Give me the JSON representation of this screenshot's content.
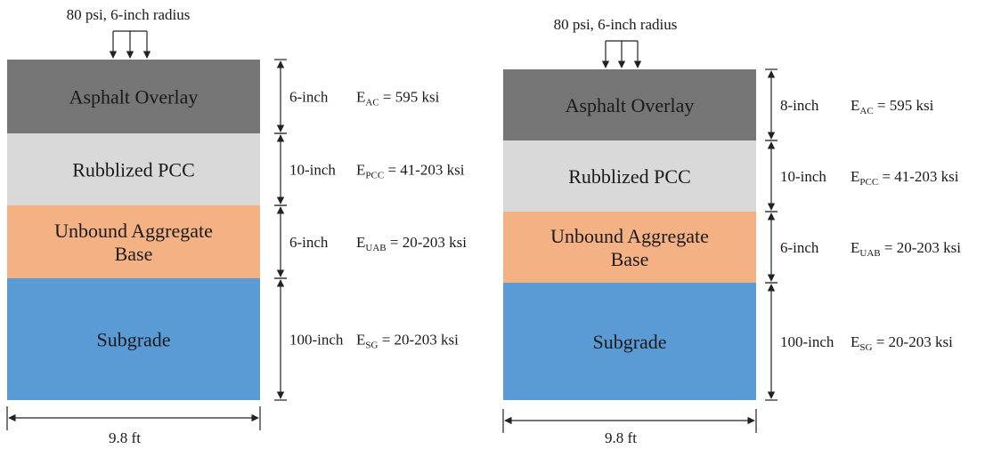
{
  "panels": [
    {
      "load_label": "80 psi, 6-inch radius",
      "width_label": "9.8 ft",
      "layers": [
        {
          "name": "Asphalt Overlay",
          "color": "#767676",
          "thickness": "6-inch",
          "modulus": {
            "symbol": "E",
            "sub": "AC",
            "value": " = 595  ksi"
          }
        },
        {
          "name": "Rubblized PCC",
          "color": "#d9d9d9",
          "thickness": "10-inch",
          "modulus": {
            "symbol": "E",
            "sub": "PCC",
            "value": " = 41-203  ksi"
          }
        },
        {
          "name": "Unbound Aggregate\nBase",
          "color": "#f4b183",
          "thickness": "6-inch",
          "modulus": {
            "symbol": "E",
            "sub": "UAB",
            "value": " = 20-203  ksi"
          }
        },
        {
          "name": "Subgrade",
          "color": "#5b9bd5",
          "thickness": "100-inch",
          "modulus": {
            "symbol": "E",
            "sub": "SG",
            "value": " = 20-203  ksi"
          }
        }
      ]
    },
    {
      "load_label": "80 psi, 6-inch radius",
      "width_label": "9.8 ft",
      "layers": [
        {
          "name": "Asphalt Overlay",
          "color": "#767676",
          "thickness": "8-inch",
          "modulus": {
            "symbol": "E",
            "sub": "AC",
            "value": " = 595  ksi"
          }
        },
        {
          "name": "Rubblized PCC",
          "color": "#d9d9d9",
          "thickness": "10-inch",
          "modulus": {
            "symbol": "E",
            "sub": "PCC",
            "value": " = 41-203  ksi"
          }
        },
        {
          "name": "Unbound Aggregate\nBase",
          "color": "#f4b183",
          "thickness": "6-inch",
          "modulus": {
            "symbol": "E",
            "sub": "UAB",
            "value": " = 20-203  ksi"
          }
        },
        {
          "name": "Subgrade",
          "color": "#5b9bd5",
          "thickness": "100-inch",
          "modulus": {
            "symbol": "E",
            "sub": "SG",
            "value": " = 20-203  ksi"
          }
        }
      ]
    }
  ]
}
